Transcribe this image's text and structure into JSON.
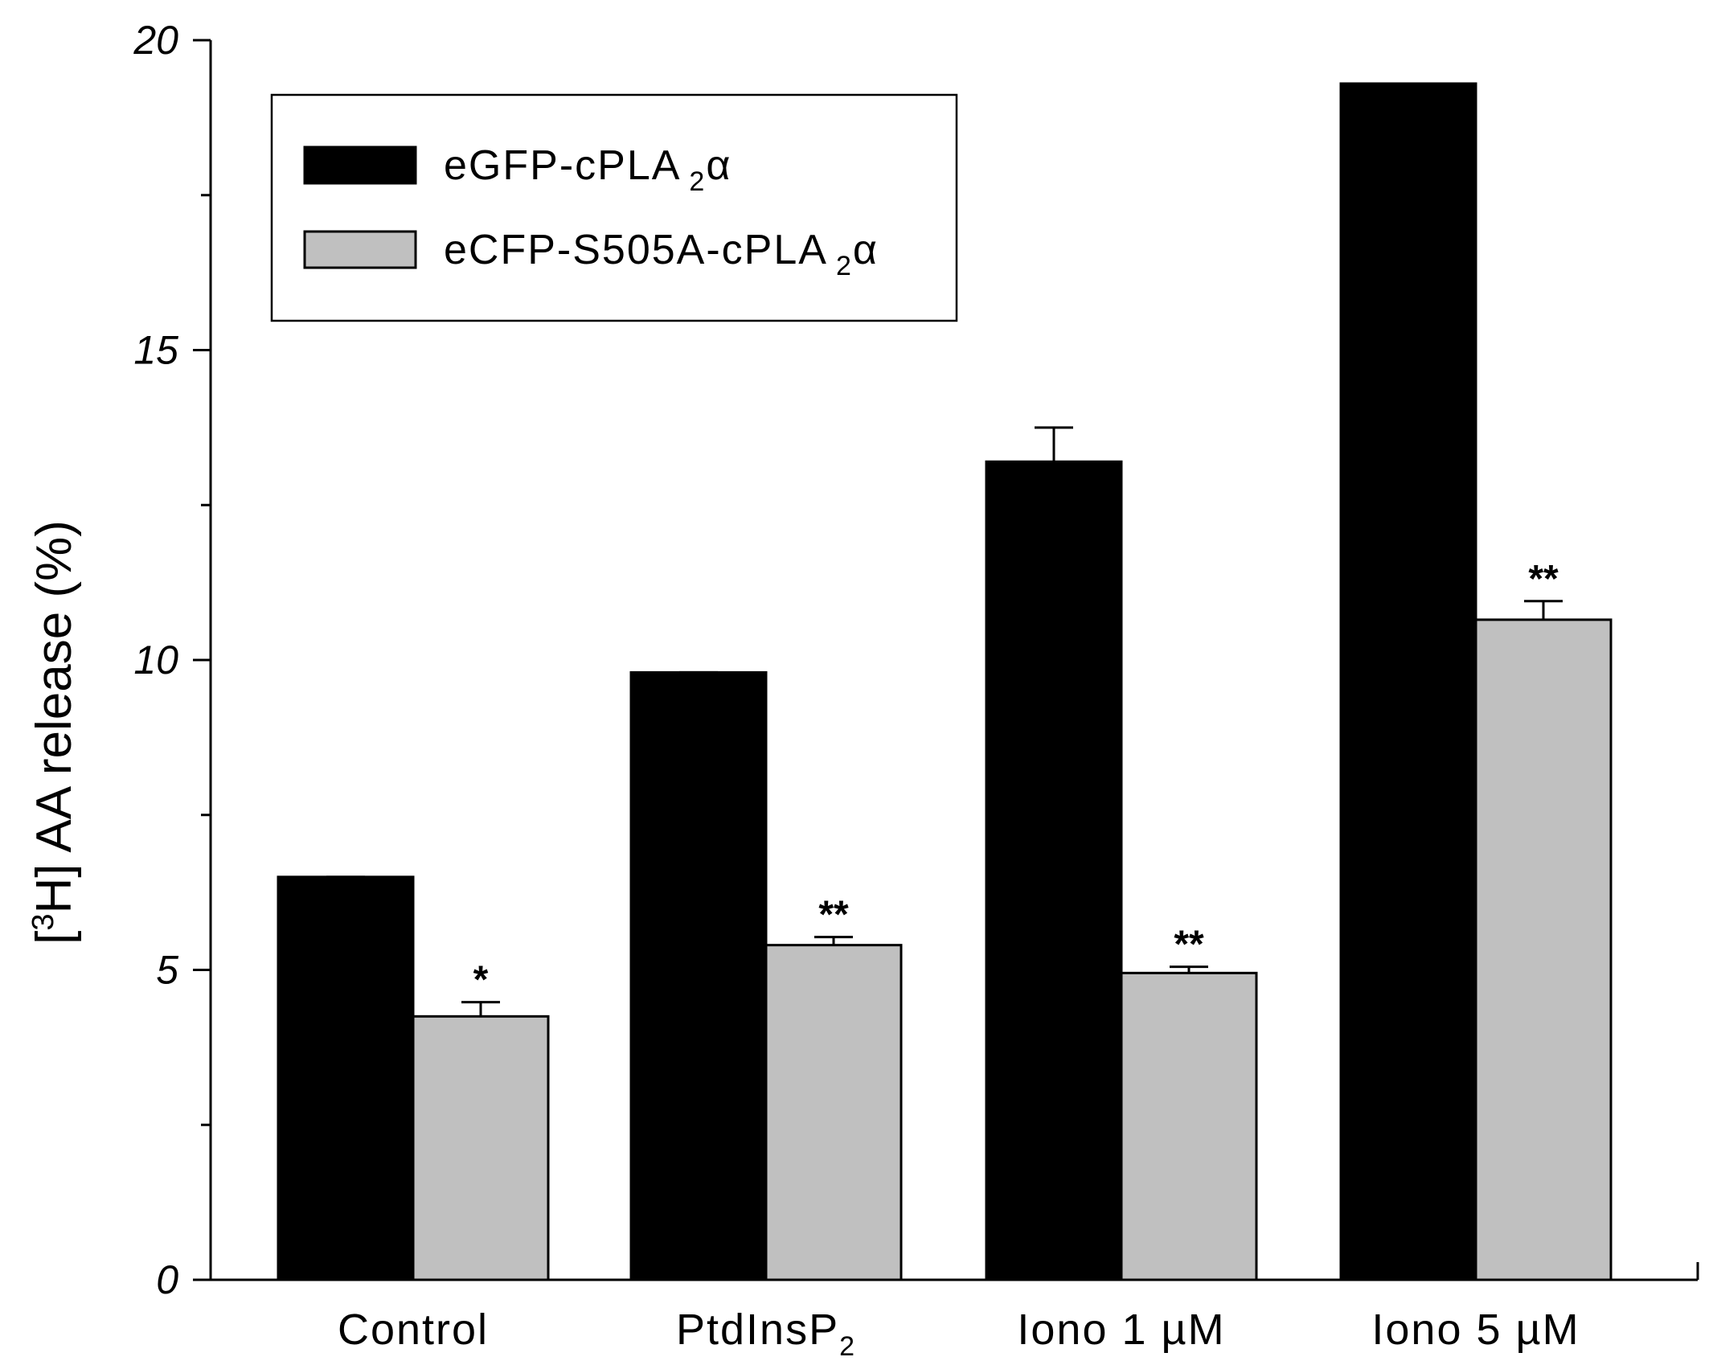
{
  "chart_data": {
    "type": "bar",
    "categories": [
      {
        "main": "Control",
        "sub": ""
      },
      {
        "main": "PtdInsP",
        "sub": "2"
      },
      {
        "main": "Iono 1 µM",
        "sub": ""
      },
      {
        "main": "Iono 5 µM",
        "sub": ""
      }
    ],
    "series": [
      {
        "name": "eGFP-cPLA",
        "name_sub": "2",
        "name_greek": "α",
        "color": "#000000",
        "values": [
          6.5,
          9.8,
          13.2,
          19.3
        ],
        "errors": [
          0.0,
          0.0,
          0.55,
          0.0
        ],
        "significance": [
          "",
          "",
          "",
          ""
        ]
      },
      {
        "name": "eCFP-S505A-cPLA",
        "name_sub": "2",
        "name_greek": "α",
        "color": "#c0c0c0",
        "values": [
          4.25,
          5.4,
          4.95,
          10.65
        ],
        "errors": [
          0.23,
          0.13,
          0.1,
          0.3
        ],
        "significance": [
          "*",
          "**",
          "**",
          "**"
        ]
      }
    ],
    "ylabel": {
      "prefix": "[",
      "sup": "3",
      "rest": "H] AA release (%)"
    },
    "yticks": [
      0,
      5,
      10,
      15,
      20
    ],
    "ylim": [
      0,
      20
    ],
    "legend": "top-left",
    "grid": false
  }
}
